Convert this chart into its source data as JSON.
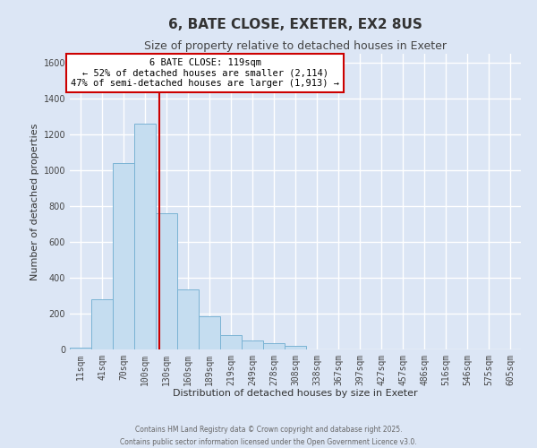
{
  "title": "6, BATE CLOSE, EXETER, EX2 8US",
  "subtitle": "Size of property relative to detached houses in Exeter",
  "xlabel": "Distribution of detached houses by size in Exeter",
  "ylabel": "Number of detached properties",
  "bar_labels": [
    "11sqm",
    "41sqm",
    "70sqm",
    "100sqm",
    "130sqm",
    "160sqm",
    "189sqm",
    "219sqm",
    "249sqm",
    "278sqm",
    "308sqm",
    "338sqm",
    "367sqm",
    "397sqm",
    "427sqm",
    "457sqm",
    "486sqm",
    "516sqm",
    "546sqm",
    "575sqm",
    "605sqm"
  ],
  "bar_values": [
    10,
    280,
    1040,
    1260,
    760,
    335,
    185,
    80,
    50,
    37,
    22,
    0,
    0,
    0,
    0,
    0,
    0,
    0,
    0,
    0,
    0
  ],
  "bar_color": "#c5ddf0",
  "bar_edge_color": "#7ab3d4",
  "vline_x": 3.65,
  "vline_color": "#cc0000",
  "annotation_title": "6 BATE CLOSE: 119sqm",
  "annotation_line1": "← 52% of detached houses are smaller (2,114)",
  "annotation_line2": "47% of semi-detached houses are larger (1,913) →",
  "annotation_box_color": "#ffffff",
  "annotation_box_edgecolor": "#cc0000",
  "ylim": [
    0,
    1650
  ],
  "yticks": [
    0,
    200,
    400,
    600,
    800,
    1000,
    1200,
    1400,
    1600
  ],
  "background_color": "#dce6f5",
  "plot_bg_color": "#dce6f5",
  "grid_color": "#ffffff",
  "footer_line1": "Contains HM Land Registry data © Crown copyright and database right 2025.",
  "footer_line2": "Contains public sector information licensed under the Open Government Licence v3.0.",
  "title_fontsize": 11,
  "subtitle_fontsize": 9,
  "axis_label_fontsize": 8,
  "tick_fontsize": 7,
  "annotation_fontsize": 7.5
}
